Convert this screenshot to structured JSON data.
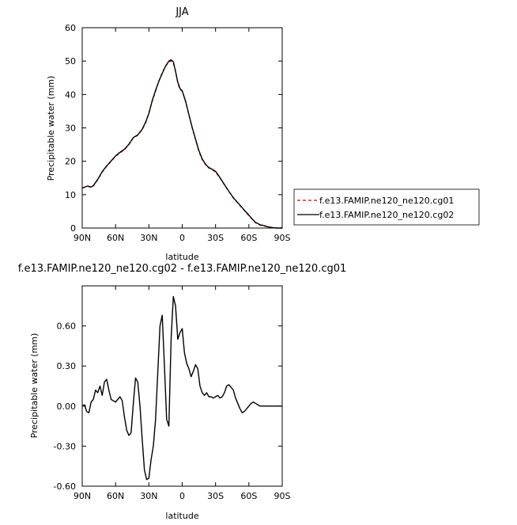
{
  "chart_data": [
    {
      "type": "line",
      "title": "JJA",
      "xlabel": "latitude",
      "ylabel": "Precipitable water (mm)",
      "xlim": [
        90,
        -90
      ],
      "ylim": [
        0,
        60
      ],
      "x_ticks": [
        {
          "value": 90,
          "label": "90N"
        },
        {
          "value": 60,
          "label": "60N"
        },
        {
          "value": 30,
          "label": "30N"
        },
        {
          "value": 0,
          "label": "0"
        },
        {
          "value": -30,
          "label": "30S"
        },
        {
          "value": -60,
          "label": "60S"
        },
        {
          "value": -90,
          "label": "90S"
        }
      ],
      "y_ticks": [
        {
          "value": 0,
          "label": "0"
        },
        {
          "value": 10,
          "label": "10"
        },
        {
          "value": 20,
          "label": "20"
        },
        {
          "value": 30,
          "label": "30"
        },
        {
          "value": 40,
          "label": "40"
        },
        {
          "value": 50,
          "label": "50"
        },
        {
          "value": 60,
          "label": "60"
        }
      ],
      "legend_position": "right",
      "series": [
        {
          "name": "f.e13.FAMIP.ne120_ne120.cg01",
          "color": "#cc0000",
          "dash": "dashed",
          "x": [
            90,
            85,
            82,
            80,
            76,
            72,
            68,
            64,
            60,
            56,
            52,
            48,
            44,
            40,
            36,
            33,
            30,
            27,
            24,
            21,
            18,
            15,
            12,
            10,
            8,
            6,
            4,
            2,
            0,
            -3,
            -6,
            -9,
            -12,
            -15,
            -18,
            -21,
            -24,
            -27,
            -30,
            -34,
            -38,
            -42,
            -46,
            -50,
            -54,
            -58,
            -62,
            -66,
            -70,
            -74,
            -78,
            -82,
            -86,
            -90
          ],
          "y": [
            12.0,
            12.5,
            12.2,
            12.6,
            14.5,
            16.8,
            18.5,
            20.0,
            21.5,
            22.5,
            23.5,
            25.0,
            27.0,
            27.8,
            29.5,
            31.5,
            34.5,
            38.0,
            41.0,
            44.0,
            46.5,
            48.5,
            49.8,
            50.1,
            49.5,
            47.0,
            43.5,
            41.5,
            41.0,
            38.0,
            34.0,
            30.0,
            26.5,
            23.0,
            20.5,
            19.0,
            18.0,
            17.5,
            16.8,
            15.0,
            13.0,
            11.0,
            9.0,
            7.5,
            6.0,
            4.5,
            3.0,
            1.6,
            0.9,
            0.6,
            0.3,
            0.1,
            0.0,
            0.0
          ]
        },
        {
          "name": "f.e13.FAMIP.ne120_ne120.cg02",
          "color": "#000000",
          "dash": "solid",
          "x": [
            90,
            85,
            82,
            80,
            76,
            72,
            68,
            64,
            60,
            56,
            52,
            48,
            44,
            40,
            36,
            33,
            30,
            27,
            24,
            21,
            18,
            15,
            12,
            10,
            8,
            6,
            4,
            2,
            0,
            -3,
            -6,
            -9,
            -12,
            -15,
            -18,
            -21,
            -24,
            -27,
            -30,
            -34,
            -38,
            -42,
            -46,
            -50,
            -54,
            -58,
            -62,
            -66,
            -70,
            -74,
            -78,
            -82,
            -86,
            -90
          ],
          "y": [
            12.0,
            12.6,
            12.3,
            12.7,
            14.6,
            16.9,
            18.6,
            20.1,
            21.6,
            22.7,
            23.6,
            25.1,
            27.1,
            27.9,
            29.6,
            31.7,
            34.3,
            38.2,
            41.2,
            44.0,
            46.3,
            48.5,
            50.0,
            50.4,
            49.8,
            46.9,
            43.7,
            41.8,
            41.1,
            38.0,
            34.0,
            30.1,
            26.6,
            23.2,
            20.7,
            19.1,
            18.1,
            17.6,
            17.0,
            15.1,
            13.0,
            11.0,
            9.1,
            7.6,
            6.1,
            4.6,
            3.1,
            1.7,
            1.0,
            0.7,
            0.3,
            0.1,
            0.0,
            0.0
          ]
        }
      ]
    },
    {
      "type": "line",
      "title": "f.e13.FAMIP.ne120_ne120.cg02 - f.e13.FAMIP.ne120_ne120.cg01",
      "xlabel": "latitude",
      "ylabel": "Precipitable water (mm)",
      "xlim": [
        90,
        -90
      ],
      "ylim": [
        -0.6,
        0.9
      ],
      "x_ticks": [
        {
          "value": 90,
          "label": "90N"
        },
        {
          "value": 60,
          "label": "60N"
        },
        {
          "value": 30,
          "label": "30N"
        },
        {
          "value": 0,
          "label": "0"
        },
        {
          "value": -30,
          "label": "30S"
        },
        {
          "value": -60,
          "label": "60S"
        },
        {
          "value": -90,
          "label": "90S"
        }
      ],
      "y_ticks": [
        {
          "value": -0.6,
          "label": "-0.60"
        },
        {
          "value": -0.3,
          "label": "-0.30"
        },
        {
          "value": 0.0,
          "label": "0.00"
        },
        {
          "value": 0.3,
          "label": "0.30"
        },
        {
          "value": 0.6,
          "label": "0.60"
        }
      ],
      "series": [
        {
          "color": "#000000",
          "dash": "solid",
          "x": [
            90,
            88,
            86,
            84,
            82,
            80,
            78,
            76,
            74,
            72,
            70,
            68,
            66,
            64,
            62,
            60,
            58,
            56,
            54,
            52,
            50,
            48,
            46,
            44,
            42,
            40,
            38,
            36,
            34,
            32,
            30,
            28,
            26,
            24,
            22,
            20,
            18,
            16,
            14,
            12,
            10,
            8,
            6,
            4,
            2,
            0,
            -2,
            -4,
            -6,
            -8,
            -10,
            -12,
            -14,
            -16,
            -18,
            -20,
            -22,
            -24,
            -26,
            -28,
            -30,
            -32,
            -34,
            -36,
            -38,
            -40,
            -42,
            -44,
            -46,
            -48,
            -50,
            -52,
            -54,
            -56,
            -58,
            -60,
            -62,
            -64,
            -66,
            -68,
            -70,
            -72,
            -74,
            -76,
            -78,
            -80,
            -82,
            -84,
            -86,
            -88,
            -90
          ],
          "y": [
            0.0,
            0.01,
            -0.04,
            -0.05,
            0.03,
            0.05,
            0.12,
            0.1,
            0.15,
            0.08,
            0.18,
            0.2,
            0.12,
            0.05,
            0.04,
            0.03,
            0.05,
            0.07,
            0.04,
            -0.08,
            -0.18,
            -0.22,
            -0.2,
            0.02,
            0.21,
            0.18,
            0.0,
            -0.25,
            -0.48,
            -0.55,
            -0.54,
            -0.4,
            -0.3,
            -0.1,
            0.25,
            0.6,
            0.68,
            0.3,
            -0.1,
            -0.15,
            0.5,
            0.82,
            0.75,
            0.5,
            0.55,
            0.58,
            0.4,
            0.32,
            0.28,
            0.22,
            0.26,
            0.31,
            0.28,
            0.15,
            0.1,
            0.08,
            0.1,
            0.07,
            0.07,
            0.06,
            0.07,
            0.08,
            0.06,
            0.07,
            0.1,
            0.15,
            0.16,
            0.14,
            0.12,
            0.06,
            0.02,
            -0.02,
            -0.05,
            -0.04,
            -0.02,
            0.0,
            0.02,
            0.03,
            0.02,
            0.01,
            0.0,
            0.0,
            0.0,
            0.0,
            0.0,
            0.0,
            0.0,
            0.0,
            0.0,
            0.0,
            0.0
          ]
        }
      ]
    }
  ]
}
